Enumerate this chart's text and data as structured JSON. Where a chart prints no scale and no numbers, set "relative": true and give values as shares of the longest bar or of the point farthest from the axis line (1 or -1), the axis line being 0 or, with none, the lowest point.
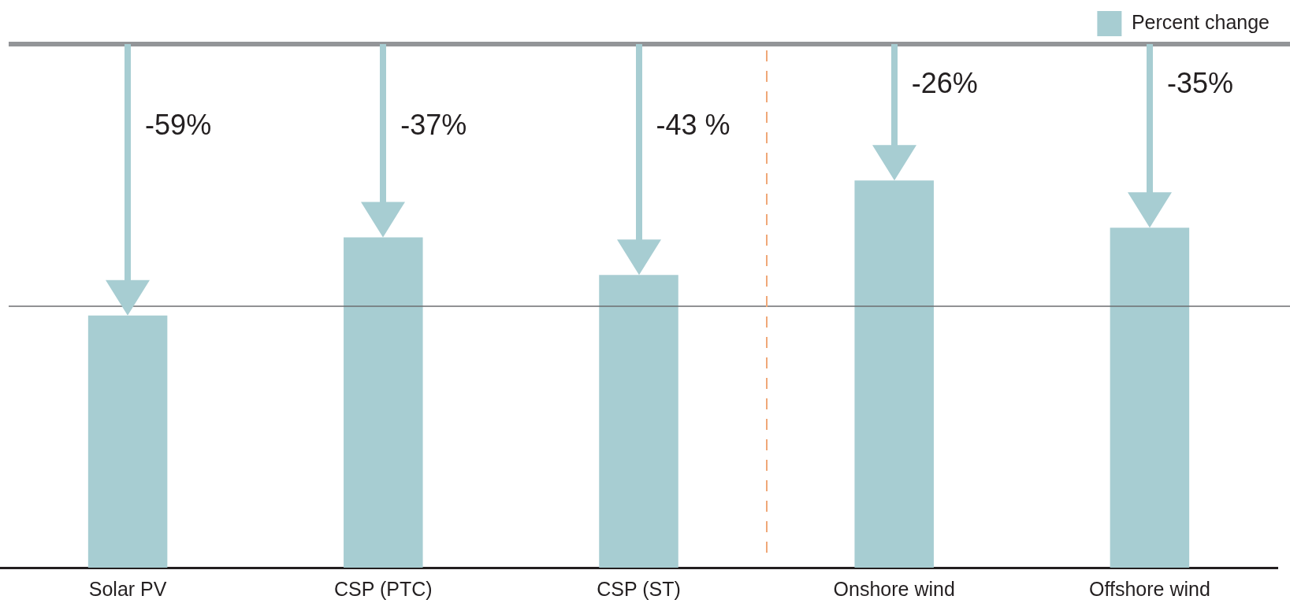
{
  "chart_data": {
    "type": "bar",
    "relative": true,
    "categories": [
      "Solar PV",
      "CSP (PTC)",
      "CSP (ST)",
      "Onshore wind",
      "Offshore wind"
    ],
    "series": [
      {
        "name": "Percent change",
        "color": "#a7cdd2",
        "values": [
          0.651,
          0.853,
          0.756,
          1,
          0.878
        ]
      }
    ],
    "annotations": [
      "-59%",
      "-37%",
      "-43 %",
      "-26%",
      "-35%"
    ],
    "ref_lines": [
      {
        "axis": "y",
        "value": 1.352,
        "color": "#939598"
      },
      {
        "axis": "y",
        "value": 0.675,
        "color": "#6d6e71"
      }
    ],
    "legend": "top right"
  }
}
